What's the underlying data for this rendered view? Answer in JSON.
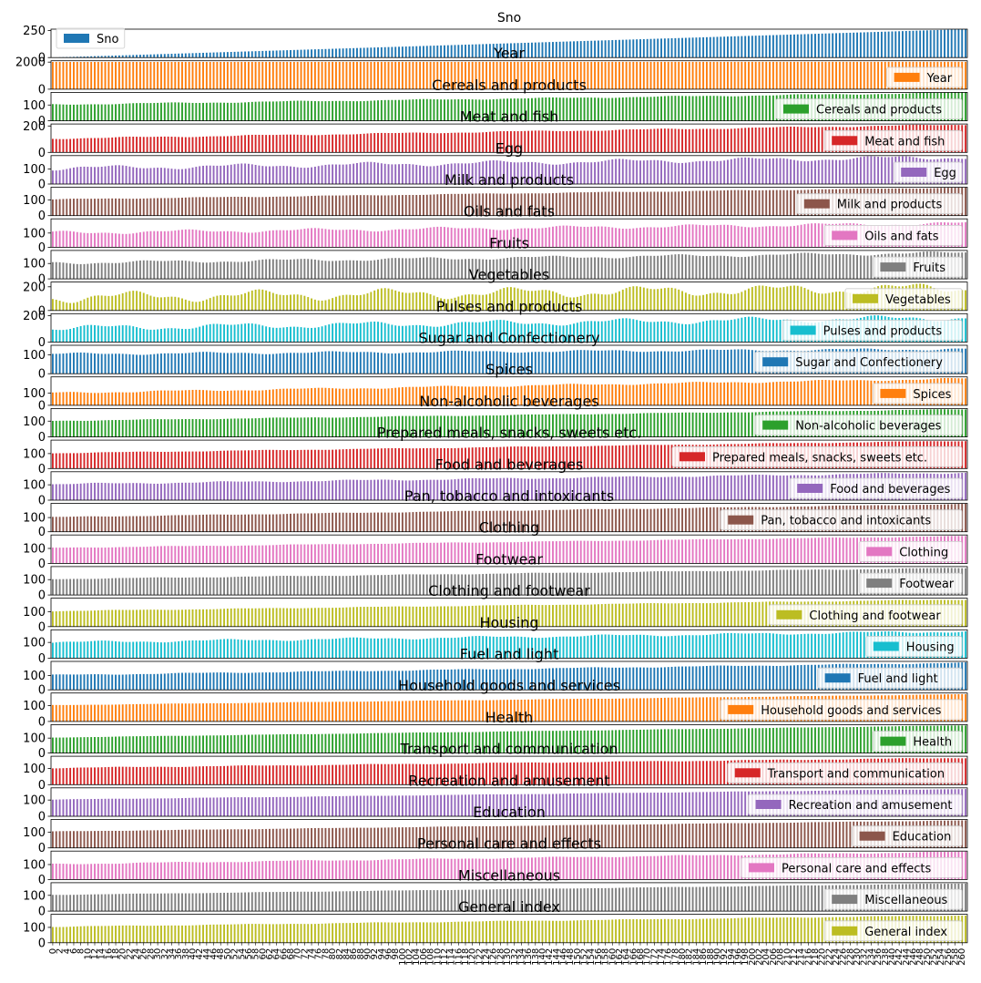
{
  "chart_data": {
    "type": "bar",
    "layout": "stacked-subplots",
    "n_points": 262,
    "x_tick_step": 2,
    "panels": [
      {
        "title": "Sno",
        "legend": "Sno",
        "legend_pos": "upper-left",
        "color": "#1f77b4",
        "yticks": [
          0,
          250
        ],
        "ylim": [
          0,
          262
        ],
        "start": 1,
        "end": 262,
        "amp": 0
      },
      {
        "title": "Year",
        "legend": "Year",
        "legend_pos": "lower-right",
        "color": "#ff7f0e",
        "yticks": [
          0,
          2000
        ],
        "ylim": [
          0,
          2100
        ],
        "start": 2013,
        "end": 2023,
        "amp": 0
      },
      {
        "title": "Cereals and products",
        "legend": "Cereals and products",
        "legend_pos": "lower-right",
        "color": "#2ca02c",
        "yticks": [
          0,
          100
        ],
        "ylim": [
          0,
          180
        ],
        "start": 103,
        "end": 178,
        "amp": 3
      },
      {
        "title": "Meat and fish",
        "legend": "Meat and fish",
        "legend_pos": "lower-right",
        "color": "#d62728",
        "yticks": [
          0,
          200
        ],
        "ylim": [
          0,
          215
        ],
        "start": 105,
        "end": 210,
        "amp": 4
      },
      {
        "title": "Egg",
        "legend": "Egg",
        "legend_pos": "lower-right",
        "color": "#9467bd",
        "yticks": [
          0,
          100
        ],
        "ylim": [
          0,
          190
        ],
        "start": 105,
        "end": 180,
        "amp": 12
      },
      {
        "title": "Milk and products",
        "legend": "Milk and products",
        "legend_pos": "lower-right",
        "color": "#8c564b",
        "yticks": [
          0,
          100
        ],
        "ylim": [
          0,
          180
        ],
        "start": 103,
        "end": 178,
        "amp": 2
      },
      {
        "title": "Oils and fats",
        "legend": "Oils and fats",
        "legend_pos": "lower-right",
        "color": "#e377c2",
        "yticks": [
          0,
          100
        ],
        "ylim": [
          0,
          200
        ],
        "start": 102,
        "end": 168,
        "amp": 10
      },
      {
        "title": "Fruits",
        "legend": "Fruits",
        "legend_pos": "lower-right",
        "color": "#7f7f7f",
        "yticks": [
          0,
          100
        ],
        "ylim": [
          0,
          185
        ],
        "start": 104,
        "end": 170,
        "amp": 8
      },
      {
        "title": "Vegetables",
        "legend": "Vegetables",
        "legend_pos": "lower-right",
        "color": "#bcbd22",
        "yticks": [
          0,
          200
        ],
        "ylim": [
          0,
          240
        ],
        "start": 110,
        "end": 190,
        "amp": 35
      },
      {
        "title": "Pulses and products",
        "legend": "Pulses and products",
        "legend_pos": "lower-right",
        "color": "#17becf",
        "yticks": [
          0,
          200
        ],
        "ylim": [
          0,
          215
        ],
        "start": 105,
        "end": 185,
        "amp": 18
      },
      {
        "title": "Sugar and Confectionery",
        "legend": "Sugar and Confectionery",
        "legend_pos": "lower-right",
        "color": "#1f77b4",
        "yticks": [
          0,
          100
        ],
        "ylim": [
          0,
          150
        ],
        "start": 104,
        "end": 130,
        "amp": 5
      },
      {
        "title": "Spices",
        "legend": "Spices",
        "legend_pos": "lower-right",
        "color": "#ff7f0e",
        "yticks": [
          0,
          100
        ],
        "ylim": [
          0,
          235
        ],
        "start": 103,
        "end": 220,
        "amp": 6
      },
      {
        "title": "Non-alcoholic beverages",
        "legend": "Non-alcoholic beverages",
        "legend_pos": "lower-right",
        "color": "#2ca02c",
        "yticks": [
          0,
          100
        ],
        "ylim": [
          0,
          180
        ],
        "start": 102,
        "end": 175,
        "amp": 2
      },
      {
        "title": "Prepared meals, snacks, sweets etc.",
        "legend": "Prepared meals, snacks, sweets etc.",
        "legend_pos": "lower-right",
        "color": "#d62728",
        "yticks": [
          0,
          100
        ],
        "ylim": [
          0,
          190
        ],
        "start": 103,
        "end": 185,
        "amp": 2
      },
      {
        "title": "Food and beverages",
        "legend": "Food and beverages",
        "legend_pos": "lower-right",
        "color": "#9467bd",
        "yticks": [
          0,
          100
        ],
        "ylim": [
          0,
          185
        ],
        "start": 104,
        "end": 178,
        "amp": 4
      },
      {
        "title": "Pan, tobacco and intoxicants",
        "legend": "Pan, tobacco and intoxicants",
        "legend_pos": "lower-right",
        "color": "#8c564b",
        "yticks": [
          0,
          100
        ],
        "ylim": [
          0,
          200
        ],
        "start": 103,
        "end": 195,
        "amp": 2
      },
      {
        "title": "Clothing",
        "legend": "Clothing",
        "legend_pos": "lower-right",
        "color": "#e377c2",
        "yticks": [
          0,
          100
        ],
        "ylim": [
          0,
          190
        ],
        "start": 104,
        "end": 182,
        "amp": 2
      },
      {
        "title": "Footwear",
        "legend": "Footwear",
        "legend_pos": "lower-right",
        "color": "#7f7f7f",
        "yticks": [
          0,
          100
        ],
        "ylim": [
          0,
          185
        ],
        "start": 104,
        "end": 176,
        "amp": 2
      },
      {
        "title": "Clothing and footwear",
        "legend": "Clothing and footwear",
        "legend_pos": "lower-right",
        "color": "#bcbd22",
        "yticks": [
          0,
          100
        ],
        "ylim": [
          0,
          190
        ],
        "start": 104,
        "end": 181,
        "amp": 2
      },
      {
        "title": "Housing",
        "legend": "Housing",
        "legend_pos": "lower-right",
        "color": "#17becf",
        "yticks": [
          0,
          100
        ],
        "ylim": [
          0,
          180
        ],
        "start": 100,
        "end": 170,
        "amp": 6
      },
      {
        "title": "Fuel and light",
        "legend": "Fuel and light",
        "legend_pos": "lower-right",
        "color": "#1f77b4",
        "yticks": [
          0,
          100
        ],
        "ylim": [
          0,
          200
        ],
        "start": 104,
        "end": 190,
        "amp": 3
      },
      {
        "title": "Household goods and services",
        "legend": "Household goods and services",
        "legend_pos": "lower-right",
        "color": "#ff7f0e",
        "yticks": [
          0,
          100
        ],
        "ylim": [
          0,
          180
        ],
        "start": 103,
        "end": 172,
        "amp": 1
      },
      {
        "title": "Health",
        "legend": "Health",
        "legend_pos": "lower-right",
        "color": "#2ca02c",
        "yticks": [
          0,
          100
        ],
        "ylim": [
          0,
          190
        ],
        "start": 104,
        "end": 185,
        "amp": 1
      },
      {
        "title": "Transport and communication",
        "legend": "Transport and communication",
        "legend_pos": "lower-right",
        "color": "#d62728",
        "yticks": [
          0,
          100
        ],
        "ylim": [
          0,
          175
        ],
        "start": 103,
        "end": 165,
        "amp": 2
      },
      {
        "title": "Recreation and amusement",
        "legend": "Recreation and amusement",
        "legend_pos": "lower-right",
        "color": "#9467bd",
        "yticks": [
          0,
          100
        ],
        "ylim": [
          0,
          175
        ],
        "start": 103,
        "end": 168,
        "amp": 1
      },
      {
        "title": "Education",
        "legend": "Education",
        "legend_pos": "lower-right",
        "color": "#8c564b",
        "yticks": [
          0,
          100
        ],
        "ylim": [
          0,
          180
        ],
        "start": 104,
        "end": 174,
        "amp": 1
      },
      {
        "title": "Personal care and effects",
        "legend": "Personal care and effects",
        "legend_pos": "lower-right",
        "color": "#e377c2",
        "yticks": [
          0,
          100
        ],
        "ylim": [
          0,
          190
        ],
        "start": 103,
        "end": 185,
        "amp": 3
      },
      {
        "title": "Miscellaneous",
        "legend": "Miscellaneous",
        "legend_pos": "lower-right",
        "color": "#7f7f7f",
        "yticks": [
          0,
          100
        ],
        "ylim": [
          0,
          180
        ],
        "start": 103,
        "end": 175,
        "amp": 1
      },
      {
        "title": "General index",
        "legend": "General index",
        "legend_pos": "lower-right",
        "color": "#bcbd22",
        "yticks": [
          0,
          100
        ],
        "ylim": [
          0,
          185
        ],
        "start": 104,
        "end": 178,
        "amp": 2
      }
    ]
  }
}
